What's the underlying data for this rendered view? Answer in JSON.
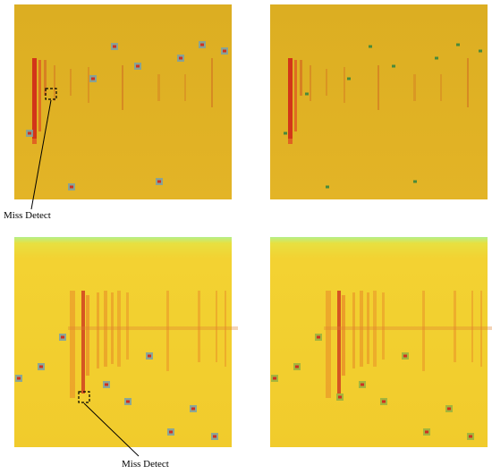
{
  "annotations": [
    {
      "label": "Miss Detect"
    },
    {
      "label": "Miss Detect"
    }
  ]
}
